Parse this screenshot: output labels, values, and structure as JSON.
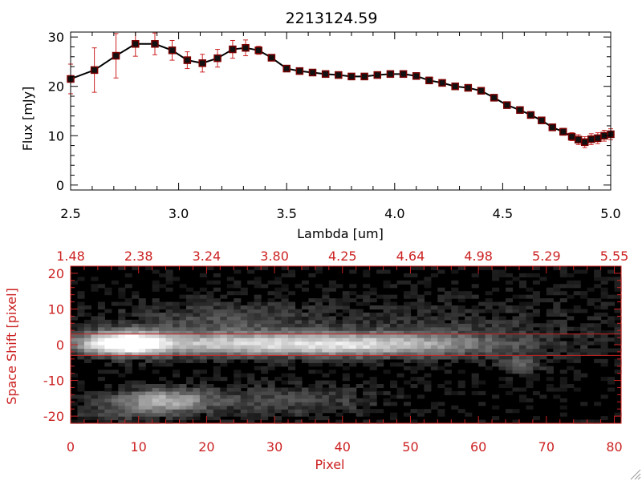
{
  "title": "2213124.59",
  "chart_data": [
    {
      "type": "line",
      "title": "2213124.59",
      "xlabel": "Lambda [um]",
      "ylabel": "Flux [mJy]",
      "xlim": [
        2.5,
        5.0
      ],
      "ylim": [
        -1,
        31
      ],
      "x_ticks": [
        "2.5",
        "3.0",
        "3.5",
        "4.0",
        "4.5",
        "5.0"
      ],
      "y_ticks": [
        "0",
        "10",
        "20",
        "30"
      ],
      "line_color": "#000000",
      "marker_color": "#7a0000",
      "errorbar_color": "#cc2222",
      "series": [
        {
          "x": [
            2.5,
            2.61,
            2.71,
            2.8,
            2.89,
            2.97,
            3.04,
            3.11,
            3.18,
            3.25,
            3.31,
            3.37,
            3.43,
            3.5,
            3.56,
            3.62,
            3.68,
            3.74,
            3.8,
            3.86,
            3.92,
            3.98,
            4.04,
            4.1,
            4.16,
            4.22,
            4.28,
            4.34,
            4.4,
            4.46,
            4.52,
            4.58,
            4.63,
            4.68,
            4.73,
            4.78,
            4.82,
            4.85,
            4.88,
            4.91,
            4.94,
            4.97,
            5.0
          ],
          "y": [
            21.5,
            23.3,
            26.2,
            28.6,
            28.6,
            27.3,
            25.3,
            24.7,
            25.7,
            27.5,
            27.8,
            27.3,
            25.8,
            23.6,
            23.1,
            22.8,
            22.5,
            22.3,
            22.0,
            22.0,
            22.3,
            22.5,
            22.5,
            22.1,
            21.2,
            20.7,
            20.0,
            19.7,
            19.1,
            17.7,
            16.2,
            15.2,
            14.2,
            13.1,
            11.7,
            10.8,
            9.8,
            9.2,
            8.7,
            9.3,
            9.5,
            10.0,
            10.3
          ],
          "err": [
            3.0,
            4.5,
            4.5,
            2.5,
            2.2,
            2.0,
            1.7,
            1.8,
            1.8,
            1.8,
            1.6,
            0.8,
            0.6,
            0.6,
            0.5,
            0.5,
            0.5,
            0.5,
            0.5,
            0.5,
            0.5,
            0.5,
            0.5,
            0.5,
            0.5,
            0.5,
            0.5,
            0.5,
            0.5,
            0.6,
            0.6,
            0.6,
            0.6,
            0.6,
            0.7,
            0.7,
            0.8,
            1.0,
            1.1,
            1.1,
            1.1,
            1.1,
            1.1
          ]
        }
      ]
    },
    {
      "type": "heatmap",
      "xlabel": "Pixel",
      "ylabel": "Space Shift [pixel]",
      "xlim": [
        0,
        81
      ],
      "ylim": [
        -22,
        22
      ],
      "x_ticks": [
        "0",
        "10",
        "20",
        "30",
        "40",
        "50",
        "60",
        "70",
        "80"
      ],
      "y_ticks": [
        "-20",
        "-10",
        "0",
        "10",
        "20"
      ],
      "top_ticks": [
        "1.48",
        "2.38",
        "3.24",
        "3.80",
        "4.25",
        "4.64",
        "4.98",
        "5.29",
        "5.55"
      ],
      "extraction_window": [
        -3,
        3
      ],
      "axis_color": "#cc2222",
      "colormap": "grayscale",
      "sources": [
        {
          "x": 8,
          "y": 0.5,
          "peak": 1.0,
          "sx": 4.0,
          "sy": 2.2
        },
        {
          "x": 25,
          "y": 0.3,
          "peak": 0.65,
          "sx": 18,
          "sy": 2.3
        },
        {
          "x": 45,
          "y": 0.0,
          "peak": 0.42,
          "sx": 12,
          "sy": 2.2
        },
        {
          "x": 14,
          "y": -15.5,
          "peak": 0.55,
          "sx": 4.5,
          "sy": 2.2
        },
        {
          "x": 32,
          "y": -15.5,
          "peak": 0.22,
          "sx": 10,
          "sy": 3
        },
        {
          "x": 66,
          "y": -5.5,
          "peak": 0.32,
          "sx": 2,
          "sy": 1.6
        },
        {
          "x": 22,
          "y": 7,
          "peak": 0.2,
          "sx": 12,
          "sy": 4
        },
        {
          "x": 7,
          "y": -18,
          "peak": 0.18,
          "sx": 6,
          "sy": 3
        },
        {
          "x": 60,
          "y": 5,
          "peak": 0.12,
          "sx": 15,
          "sy": 6
        }
      ]
    }
  ]
}
